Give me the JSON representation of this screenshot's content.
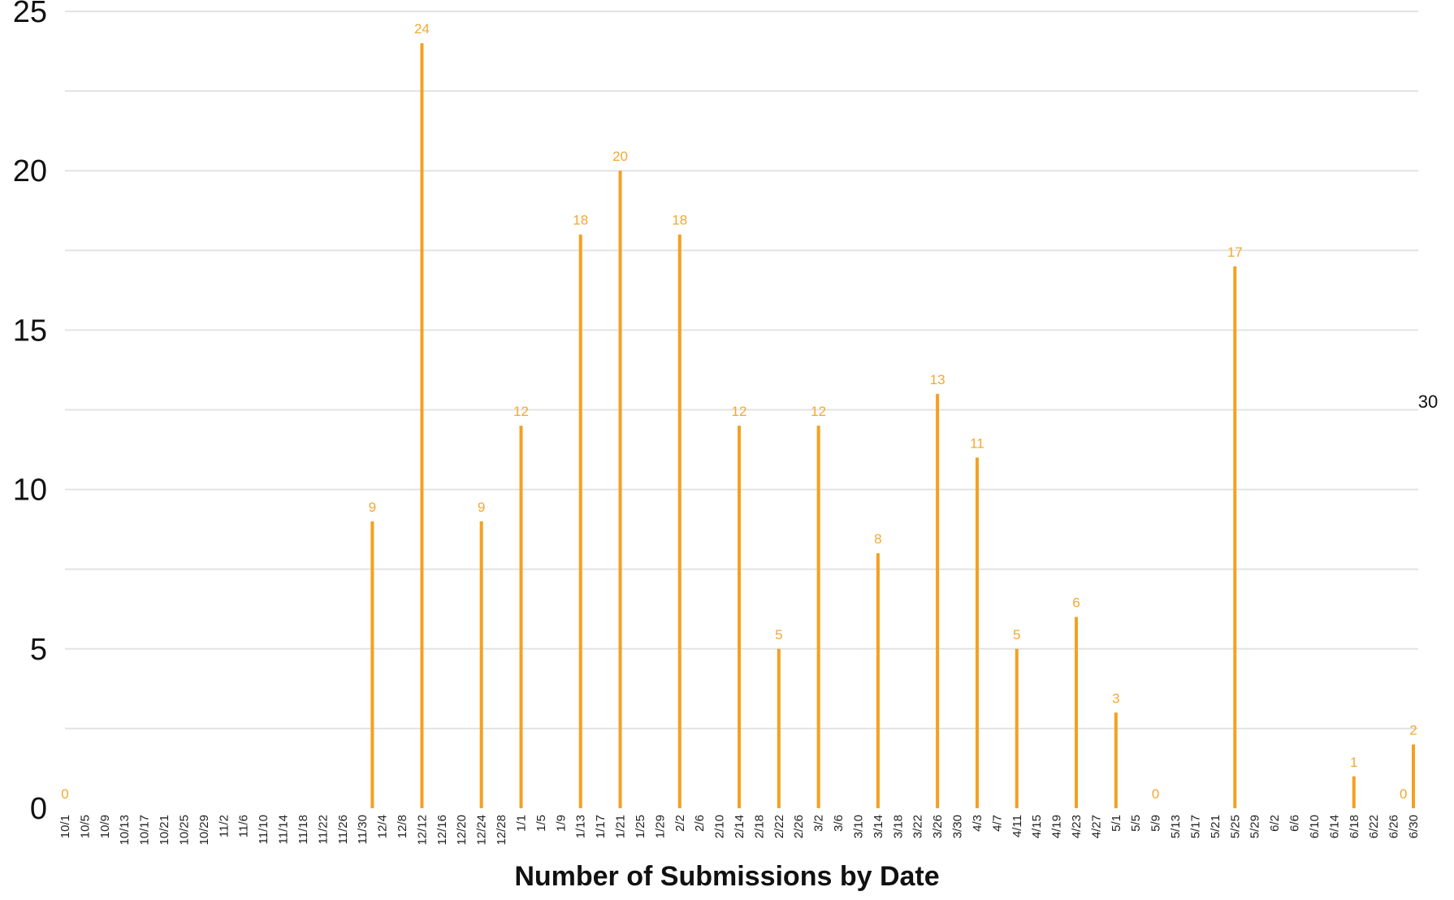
{
  "chart_data": {
    "type": "bar",
    "title": "",
    "xlabel": "Number of Submissions by Date",
    "ylabel": "",
    "ylim": [
      0,
      25
    ],
    "y_ticks": [
      0,
      5,
      10,
      15,
      20,
      25
    ],
    "grid": true,
    "legend": "none",
    "bar_color": "#f5a020",
    "label_color": "#f4a830",
    "x_tick_labels": [
      "10/1",
      "10/5",
      "10/9",
      "10/13",
      "10/17",
      "10/21",
      "10/25",
      "10/29",
      "11/2",
      "11/6",
      "11/10",
      "11/14",
      "11/18",
      "11/22",
      "11/26",
      "11/30",
      "12/4",
      "12/8",
      "12/12",
      "12/16",
      "12/20",
      "12/24",
      "12/28",
      "1/1",
      "1/5",
      "1/9",
      "1/13",
      "1/17",
      "1/21",
      "1/25",
      "1/29",
      "2/2",
      "2/6",
      "2/10",
      "2/14",
      "2/18",
      "2/22",
      "2/26",
      "3/2",
      "3/6",
      "3/10",
      "3/14",
      "3/18",
      "3/22",
      "3/26",
      "3/30",
      "4/3",
      "4/7",
      "4/11",
      "4/15",
      "4/19",
      "4/23",
      "4/27",
      "5/1",
      "5/5",
      "5/9",
      "5/13",
      "5/17",
      "5/21",
      "5/25",
      "5/29",
      "6/2",
      "6/6",
      "6/10",
      "6/14",
      "6/18",
      "6/22",
      "6/26",
      "6/30"
    ],
    "points": [
      {
        "date": "10/1",
        "value": 0
      },
      {
        "date": "12/2",
        "value": 9
      },
      {
        "date": "12/12",
        "value": 24
      },
      {
        "date": "12/24",
        "value": 9
      },
      {
        "date": "1/1",
        "value": 12
      },
      {
        "date": "1/13",
        "value": 18
      },
      {
        "date": "1/21",
        "value": 20
      },
      {
        "date": "2/2",
        "value": 18
      },
      {
        "date": "2/14",
        "value": 12
      },
      {
        "date": "2/22",
        "value": 5
      },
      {
        "date": "3/2",
        "value": 12
      },
      {
        "date": "3/14",
        "value": 8
      },
      {
        "date": "3/26",
        "value": 13
      },
      {
        "date": "4/3",
        "value": 11
      },
      {
        "date": "4/11",
        "value": 5
      },
      {
        "date": "4/23",
        "value": 6
      },
      {
        "date": "5/1",
        "value": 3
      },
      {
        "date": "5/9",
        "value": 0
      },
      {
        "date": "5/25",
        "value": 17
      },
      {
        "date": "6/18",
        "value": 1
      },
      {
        "date": "6/28",
        "value": 0
      },
      {
        "date": "6/30",
        "value": 2
      }
    ],
    "annotations": [
      "30"
    ]
  }
}
